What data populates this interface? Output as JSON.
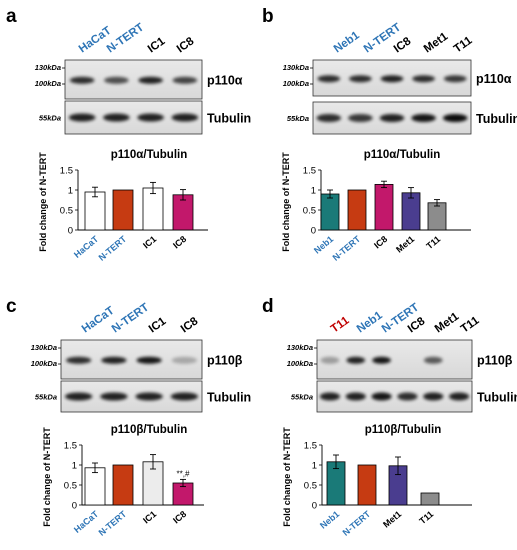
{
  "figure": {
    "panels": [
      {
        "letter": "a",
        "lanes": [
          {
            "label": "HaCaT",
            "color": "#2e75b6"
          },
          {
            "label": "N-TERT",
            "color": "#2e75b6"
          },
          {
            "label": "IC1",
            "color": "#000000"
          },
          {
            "label": "IC8",
            "color": "#000000"
          }
        ],
        "markers_top": [
          "130kDa",
          "100kDa"
        ],
        "marker_bottom": "55kDa",
        "protein_label": "p110α",
        "loading_label": "Tubulin",
        "band_intensity": [
          0.8,
          0.65,
          0.85,
          0.7
        ],
        "tubulin_intensity": [
          0.85,
          0.85,
          0.85,
          0.85
        ],
        "chart_data": {
          "type": "bar",
          "title": "p110α/Tubulin",
          "ylabel": "Fold change of N-TERT",
          "ylim": [
            0,
            1.5
          ],
          "yticks": [
            "0",
            "0.5",
            "1",
            "1.5"
          ],
          "categories": [
            "HaCaT",
            "N-TERT",
            "IC1",
            "IC8"
          ],
          "category_colors": [
            "#2e75b6",
            "#2e75b6",
            "#000000",
            "#000000"
          ],
          "values": [
            0.95,
            1.0,
            1.05,
            0.88
          ],
          "errors": [
            0.12,
            0,
            0.14,
            0.13
          ],
          "bar_colors": [
            "#ffffff",
            "#c63b12",
            "#ffffff",
            "#c2186b"
          ],
          "annotations": [
            "",
            "",
            "",
            ""
          ]
        }
      },
      {
        "letter": "b",
        "lanes": [
          {
            "label": "Neb1",
            "color": "#2e75b6"
          },
          {
            "label": "N-TERT",
            "color": "#2e75b6"
          },
          {
            "label": "IC8",
            "color": "#000000"
          },
          {
            "label": "Met1",
            "color": "#000000"
          },
          {
            "label": "T11",
            "color": "#000000"
          }
        ],
        "markers_top": [
          "130kDa",
          "100kDa"
        ],
        "marker_bottom": "55kDa",
        "protein_label": "p110α",
        "loading_label": "Tubulin",
        "band_intensity": [
          0.8,
          0.8,
          0.85,
          0.8,
          0.75
        ],
        "tubulin_intensity": [
          0.8,
          0.75,
          0.85,
          0.9,
          0.95
        ],
        "chart_data": {
          "type": "bar",
          "title": "p110α/Tubulin",
          "ylabel": "Fold change of N-TERT",
          "ylim": [
            0,
            1.5
          ],
          "yticks": [
            "0",
            "0.5",
            "1",
            "1.5"
          ],
          "categories": [
            "Neb1",
            "N-TERT",
            "IC8",
            "Met1",
            "T11"
          ],
          "category_colors": [
            "#2e75b6",
            "#2e75b6",
            "#000000",
            "#000000",
            "#000000"
          ],
          "values": [
            0.9,
            1.0,
            1.14,
            0.93,
            0.68
          ],
          "errors": [
            0.1,
            0,
            0.08,
            0.13,
            0.08
          ],
          "bar_colors": [
            "#1a7a78",
            "#c63b12",
            "#c2186b",
            "#4a3d8f",
            "#8c8c8c"
          ],
          "annotations": [
            "",
            "",
            "",
            "",
            ""
          ]
        }
      },
      {
        "letter": "c",
        "lanes": [
          {
            "label": "HaCaT",
            "color": "#2e75b6"
          },
          {
            "label": "N-TERT",
            "color": "#2e75b6"
          },
          {
            "label": "IC1",
            "color": "#000000"
          },
          {
            "label": "IC8",
            "color": "#000000"
          }
        ],
        "markers_top": [
          "130kDa",
          "100kDa"
        ],
        "marker_bottom": "55kDa",
        "protein_label": "p110β",
        "loading_label": "Tubulin",
        "band_intensity": [
          0.8,
          0.85,
          0.9,
          0.25
        ],
        "tubulin_intensity": [
          0.85,
          0.85,
          0.85,
          0.85
        ],
        "chart_data": {
          "type": "bar",
          "title": "p110β/Tubulin",
          "ylabel": "Fold change of N-TERT",
          "ylim": [
            0,
            1.5
          ],
          "yticks": [
            "0",
            "0.5",
            "1",
            "1.5"
          ],
          "categories": [
            "HaCaT",
            "N-TERT",
            "IC1",
            "IC8"
          ],
          "category_colors": [
            "#2e75b6",
            "#2e75b6",
            "#000000",
            "#000000"
          ],
          "values": [
            0.93,
            1.0,
            1.08,
            0.55
          ],
          "errors": [
            0.12,
            0,
            0.18,
            0.09
          ],
          "bar_colors": [
            "#ffffff",
            "#c63b12",
            "#ececec",
            "#c2186b"
          ],
          "annotations": [
            "",
            "",
            "",
            "**,#"
          ]
        }
      },
      {
        "letter": "d",
        "lanes": [
          {
            "label": "T11",
            "color": "#c00000"
          },
          {
            "label": "Neb1",
            "color": "#2e75b6"
          },
          {
            "label": "N-TERT",
            "color": "#2e75b6"
          },
          {
            "label": "IC8",
            "color": "#000000"
          },
          {
            "label": "Met1",
            "color": "#000000"
          },
          {
            "label": "T11",
            "color": "#000000"
          }
        ],
        "markers_top": [
          "130kDa",
          "100kDa"
        ],
        "marker_bottom": "55kDa",
        "protein_label": "p110β",
        "loading_label": "Tubulin",
        "band_intensity": [
          0.3,
          0.85,
          0.9,
          0,
          0.6,
          0
        ],
        "tubulin_intensity": [
          0.85,
          0.85,
          0.9,
          0.8,
          0.85,
          0.85
        ],
        "chart_data": {
          "type": "bar",
          "title": "p110β/Tubulin",
          "ylabel": "Fold change of N-TERT",
          "ylim": [
            0,
            1.5
          ],
          "yticks": [
            "0",
            "0.5",
            "1",
            "1.5"
          ],
          "categories": [
            "Neb1",
            "N-TERT",
            "Met1",
            "T11"
          ],
          "category_colors": [
            "#2e75b6",
            "#2e75b6",
            "#000000",
            "#000000"
          ],
          "values": [
            1.08,
            1.0,
            0.98,
            0.3
          ],
          "errors": [
            0.17,
            0,
            0.22,
            0
          ],
          "bar_colors": [
            "#1a7a78",
            "#c63b12",
            "#4a3d8f",
            "#8c8c8c"
          ],
          "annotations": [
            "",
            "",
            "",
            ""
          ]
        }
      }
    ]
  }
}
